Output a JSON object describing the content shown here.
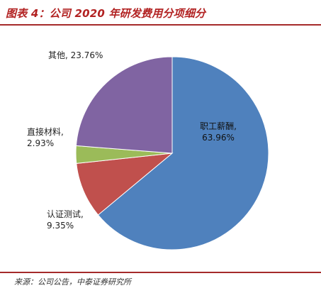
{
  "figure_title": "图表 4：公司 2020 年研发费用分项细分",
  "source_note": "来源：公司公告，中泰证券研究所",
  "chart_data": {
    "type": "pie",
    "title": "",
    "slices": [
      {
        "label": "职工薪酬",
        "value": 63.96,
        "percent_label": "63.96%",
        "color": "#4f81bd"
      },
      {
        "label": "认证测试",
        "value": 9.35,
        "percent_label": "9.35%",
        "color": "#c0504d"
      },
      {
        "label": "直接材料",
        "value": 2.93,
        "percent_label": "2.93%",
        "color": "#9bbb59"
      },
      {
        "label": "其他",
        "value": 23.76,
        "percent_label": "23.76%",
        "color": "#8064a2"
      }
    ]
  }
}
